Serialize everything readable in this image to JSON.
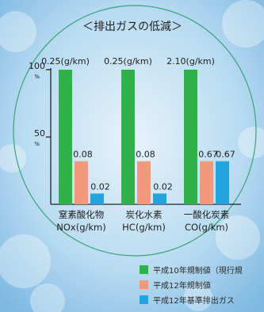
{
  "chart_data": {
    "type": "bar",
    "title": "＜排出ガスの低減＞",
    "y_axis": {
      "range": [
        0,
        100
      ],
      "ticks": [
        {
          "value": 100,
          "label": "100",
          "unit": "%"
        },
        {
          "value": 50,
          "label": "50",
          "unit": "%"
        }
      ]
    },
    "categories": [
      {
        "line1": "窒素酸化物",
        "line2": "NOx(g/km)"
      },
      {
        "line1": "炭化水素",
        "line2": "HC(g/km)"
      },
      {
        "line1": "一酸化炭素",
        "line2": "CO(g/km)"
      }
    ],
    "series": [
      {
        "name": "平成10年規制値（現行規",
        "color": "#2fb24a",
        "values": [
          100,
          100,
          100
        ],
        "labels": [
          "0.25(g/km)",
          "0.25(g/km)",
          "2.10(g/km)"
        ]
      },
      {
        "name": "平成12年規制値",
        "color": "#f19a7b",
        "values": [
          32,
          32,
          32
        ],
        "labels": [
          "0.08",
          "0.08",
          "0.67"
        ]
      },
      {
        "name": "平成12年基準排出ガス",
        "color": "#21a5dc",
        "values": [
          8,
          8,
          32
        ],
        "labels": [
          "0.02",
          "0.02",
          "0.67"
        ]
      }
    ],
    "colors": {
      "axis": "#222222",
      "ellipse": "#3aa37a"
    }
  }
}
